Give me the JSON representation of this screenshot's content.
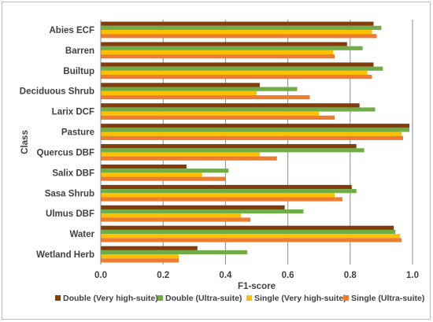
{
  "chart_data": {
    "type": "bar",
    "orientation": "horizontal",
    "title": "",
    "xlabel": "F1-score",
    "ylabel": "Class",
    "xlim": [
      0,
      1
    ],
    "x_ticks": [
      "0.0",
      "0.2",
      "0.4",
      "0.6",
      "0.8",
      "1.0"
    ],
    "grid": "vertical major gridlines",
    "legend_position": "bottom",
    "categories": [
      "Abies ECF",
      "Barren",
      "Builtup",
      "Deciduous Shrub",
      "Larix DCF",
      "Pasture",
      "Quercus DBF",
      "Salix DBF",
      "Sasa Shrub",
      "Ulmus DBF",
      "Water",
      "Wetland Herb"
    ],
    "series": [
      {
        "name": "Double (Very high-suite)",
        "color": "#843c0c",
        "values": [
          0.875,
          0.79,
          0.875,
          0.51,
          0.83,
          0.99,
          0.82,
          0.275,
          0.805,
          0.59,
          0.94,
          0.31
        ]
      },
      {
        "name": "Double (Ultra-suite)",
        "color": "#70ad47",
        "values": [
          0.9,
          0.84,
          0.905,
          0.63,
          0.88,
          0.99,
          0.845,
          0.41,
          0.82,
          0.65,
          0.945,
          0.47
        ]
      },
      {
        "name": "Single (Very high-suite)",
        "color": "#ffc000",
        "values": [
          0.87,
          0.745,
          0.855,
          0.5,
          0.7,
          0.965,
          0.51,
          0.325,
          0.75,
          0.45,
          0.96,
          0.25
        ]
      },
      {
        "name": "Single (Ultra-suite)",
        "color": "#ed7d31",
        "values": [
          0.885,
          0.75,
          0.87,
          0.67,
          0.75,
          0.97,
          0.565,
          0.4,
          0.775,
          0.48,
          0.965,
          0.25
        ]
      }
    ]
  }
}
